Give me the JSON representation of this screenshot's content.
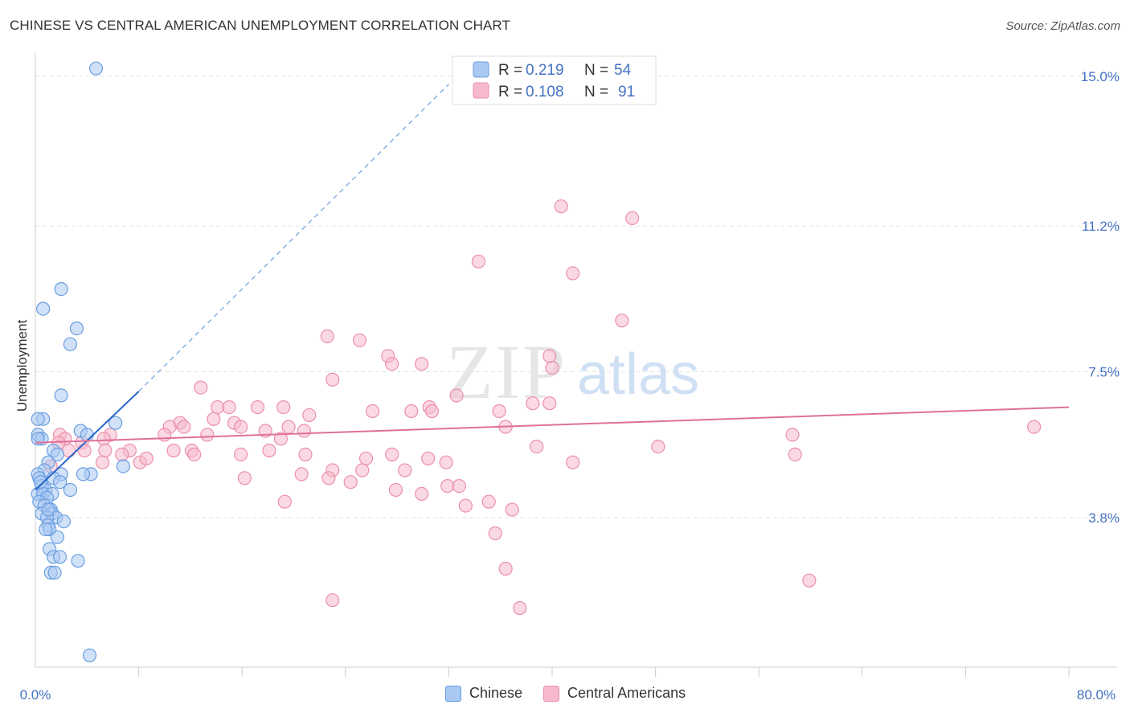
{
  "header": {
    "title": "CHINESE VS CENTRAL AMERICAN UNEMPLOYMENT CORRELATION CHART",
    "source": "Source: ZipAtlas.com"
  },
  "watermark": {
    "zip": "ZIP",
    "atlas": "atlas"
  },
  "colors": {
    "chinese_fill": "#a9c8f2",
    "chinese_stroke": "#6a9ee0",
    "chinese_line": "#2a66c8",
    "central_fill": "#f6b9cc",
    "central_stroke": "#ec8fab",
    "central_line": "#e0709a",
    "axis_text": "#4472c4"
  },
  "legend": {
    "chinese": {
      "r_label": "R = ",
      "r_value": "0.219",
      "n_label": "N = ",
      "n_value": "54"
    },
    "central": {
      "r_label": "R = ",
      "r_value": "0.108",
      "n_label": "N = ",
      "n_value": "91"
    }
  },
  "bottom_legend": {
    "chinese": "Chinese",
    "central": "Central Americans"
  },
  "chart_data": {
    "type": "scatter",
    "title": "CHINESE VS CENTRAL AMERICAN UNEMPLOYMENT CORRELATION CHART",
    "xlabel": "",
    "ylabel": "Unemployment",
    "xlim": [
      0,
      80
    ],
    "ylim": [
      0,
      16
    ],
    "x_tick_labels": [
      "0.0%",
      "80.0%"
    ],
    "y_ticks": [
      3.8,
      7.5,
      11.2,
      15.0
    ],
    "y_tick_labels": [
      "3.8%",
      "7.5%",
      "11.2%",
      "15.0%"
    ],
    "grid": true,
    "legend_position": "top-center",
    "series": [
      {
        "name": "Chinese",
        "r": 0.219,
        "n": 54,
        "trend": {
          "x0": 0,
          "y0": 4.5,
          "x1": 8,
          "y1": 7.0,
          "dashed_to_x": 32,
          "dashed_to_y": 14.8
        },
        "points": [
          [
            4.7,
            15.2
          ],
          [
            2.0,
            9.6
          ],
          [
            0.6,
            9.1
          ],
          [
            3.2,
            8.6
          ],
          [
            2.7,
            8.2
          ],
          [
            2.0,
            6.9
          ],
          [
            0.6,
            6.3
          ],
          [
            0.2,
            6.3
          ],
          [
            6.2,
            6.2
          ],
          [
            3.5,
            6.0
          ],
          [
            4.0,
            5.9
          ],
          [
            0.2,
            5.9
          ],
          [
            0.5,
            5.8
          ],
          [
            0.2,
            5.8
          ],
          [
            1.4,
            5.5
          ],
          [
            1.7,
            5.4
          ],
          [
            1.0,
            5.2
          ],
          [
            0.7,
            5.0
          ],
          [
            0.2,
            4.9
          ],
          [
            6.8,
            5.1
          ],
          [
            4.3,
            4.9
          ],
          [
            3.7,
            4.9
          ],
          [
            2.0,
            4.9
          ],
          [
            1.4,
            4.8
          ],
          [
            0.3,
            4.8
          ],
          [
            0.5,
            4.6
          ],
          [
            0.8,
            4.5
          ],
          [
            1.9,
            4.7
          ],
          [
            2.7,
            4.5
          ],
          [
            0.2,
            4.4
          ],
          [
            0.6,
            4.4
          ],
          [
            1.3,
            4.4
          ],
          [
            0.9,
            4.3
          ],
          [
            0.3,
            4.2
          ],
          [
            0.7,
            4.1
          ],
          [
            1.2,
            4.0
          ],
          [
            0.5,
            3.9
          ],
          [
            1.3,
            3.9
          ],
          [
            1.6,
            3.8
          ],
          [
            0.9,
            3.8
          ],
          [
            2.2,
            3.7
          ],
          [
            1.0,
            3.6
          ],
          [
            1.1,
            3.5
          ],
          [
            0.8,
            3.5
          ],
          [
            1.7,
            3.3
          ],
          [
            1.1,
            3.0
          ],
          [
            1.4,
            2.8
          ],
          [
            1.9,
            2.8
          ],
          [
            3.3,
            2.7
          ],
          [
            1.2,
            2.4
          ],
          [
            1.5,
            2.4
          ],
          [
            4.2,
            0.3
          ],
          [
            0.4,
            4.7
          ],
          [
            1.0,
            4.0
          ]
        ]
      },
      {
        "name": "Central Americans",
        "r": 0.108,
        "n": 91,
        "trend": {
          "x0": 0,
          "y0": 5.7,
          "x1": 80,
          "y1": 6.6
        },
        "points": [
          [
            40.7,
            11.7
          ],
          [
            46.2,
            11.4
          ],
          [
            34.3,
            10.3
          ],
          [
            41.6,
            10.0
          ],
          [
            45.4,
            8.8
          ],
          [
            22.6,
            8.4
          ],
          [
            25.1,
            8.3
          ],
          [
            27.3,
            7.9
          ],
          [
            39.8,
            7.9
          ],
          [
            27.6,
            7.7
          ],
          [
            29.9,
            7.7
          ],
          [
            40.0,
            7.6
          ],
          [
            23.0,
            7.3
          ],
          [
            12.8,
            7.1
          ],
          [
            32.6,
            6.9
          ],
          [
            38.5,
            6.7
          ],
          [
            39.8,
            6.7
          ],
          [
            14.1,
            6.6
          ],
          [
            15.0,
            6.6
          ],
          [
            17.2,
            6.6
          ],
          [
            19.2,
            6.6
          ],
          [
            26.1,
            6.5
          ],
          [
            29.1,
            6.5
          ],
          [
            30.5,
            6.6
          ],
          [
            30.7,
            6.5
          ],
          [
            35.9,
            6.5
          ],
          [
            21.2,
            6.4
          ],
          [
            13.8,
            6.3
          ],
          [
            11.2,
            6.2
          ],
          [
            15.4,
            6.2
          ],
          [
            10.4,
            6.1
          ],
          [
            11.5,
            6.1
          ],
          [
            15.9,
            6.1
          ],
          [
            17.8,
            6.0
          ],
          [
            19.6,
            6.1
          ],
          [
            20.8,
            6.0
          ],
          [
            36.4,
            6.1
          ],
          [
            13.3,
            5.9
          ],
          [
            10.0,
            5.9
          ],
          [
            19.0,
            5.8
          ],
          [
            5.8,
            5.9
          ],
          [
            1.9,
            5.9
          ],
          [
            3.6,
            5.7
          ],
          [
            2.3,
            5.8
          ],
          [
            5.3,
            5.8
          ],
          [
            3.8,
            5.5
          ],
          [
            5.4,
            5.5
          ],
          [
            7.3,
            5.5
          ],
          [
            10.7,
            5.5
          ],
          [
            12.1,
            5.5
          ],
          [
            15.9,
            5.4
          ],
          [
            12.3,
            5.4
          ],
          [
            18.1,
            5.5
          ],
          [
            20.9,
            5.4
          ],
          [
            27.6,
            5.4
          ],
          [
            38.8,
            5.6
          ],
          [
            48.2,
            5.6
          ],
          [
            58.6,
            5.9
          ],
          [
            58.8,
            5.4
          ],
          [
            77.3,
            6.1
          ],
          [
            6.7,
            5.4
          ],
          [
            8.1,
            5.2
          ],
          [
            8.6,
            5.3
          ],
          [
            5.2,
            5.2
          ],
          [
            25.6,
            5.3
          ],
          [
            30.4,
            5.3
          ],
          [
            31.8,
            5.2
          ],
          [
            41.6,
            5.2
          ],
          [
            23.0,
            5.0
          ],
          [
            25.3,
            5.0
          ],
          [
            28.6,
            5.0
          ],
          [
            20.6,
            4.9
          ],
          [
            16.2,
            4.8
          ],
          [
            22.7,
            4.8
          ],
          [
            24.4,
            4.7
          ],
          [
            31.9,
            4.6
          ],
          [
            32.8,
            4.6
          ],
          [
            27.9,
            4.5
          ],
          [
            29.9,
            4.4
          ],
          [
            19.3,
            4.2
          ],
          [
            33.3,
            4.1
          ],
          [
            35.1,
            4.2
          ],
          [
            36.9,
            4.0
          ],
          [
            35.6,
            3.4
          ],
          [
            36.4,
            2.5
          ],
          [
            23.0,
            1.7
          ],
          [
            37.5,
            1.5
          ],
          [
            59.9,
            2.2
          ],
          [
            1.8,
            5.7
          ],
          [
            2.6,
            5.5
          ],
          [
            1.2,
            5.1
          ]
        ]
      }
    ]
  }
}
